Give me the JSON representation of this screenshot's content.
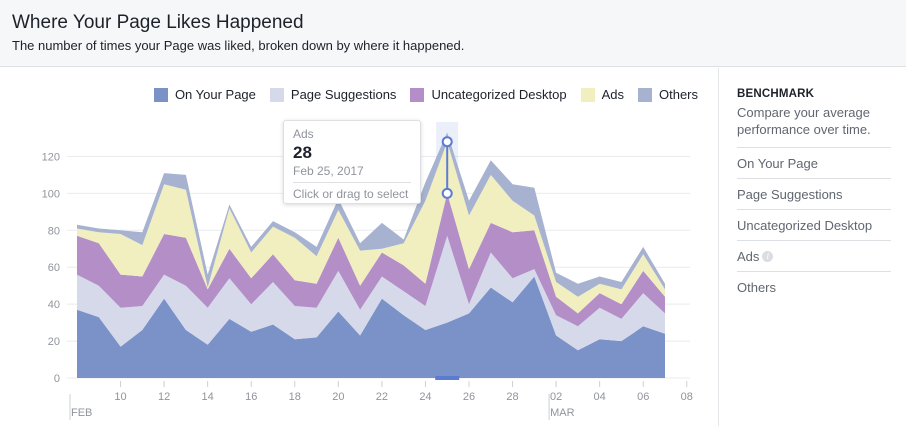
{
  "header": {
    "title": "Where Your Page Likes Happened",
    "subtitle": "The number of times your Page was liked, broken down by where it happened."
  },
  "sidebar": {
    "title": "BENCHMARK",
    "description": "Compare your average performance over time.",
    "items": [
      {
        "label": "On Your Page",
        "info": false
      },
      {
        "label": "Page Suggestions",
        "info": false
      },
      {
        "label": "Uncategorized Desktop",
        "info": false
      },
      {
        "label": "Ads",
        "info": true,
        "info_glyph": "i"
      },
      {
        "label": "Others",
        "info": false
      }
    ]
  },
  "tooltip": {
    "series": "Ads",
    "value": "28",
    "date": "Feb 25, 2017",
    "hint": "Click or drag to select"
  },
  "colors": {
    "on_your_page": "#7b92c8",
    "page_suggestions": "#d5d9ea",
    "uncategorized_desktop": "#b48fc7",
    "ads": "#f1efbf",
    "others": "#a6b2d0",
    "highlight": "#5b7bd5",
    "grid": "#e9ebee",
    "axis_text": "#90949c"
  },
  "chart_data": {
    "type": "area",
    "stacked": true,
    "x": [
      "Feb 08",
      "Feb 09",
      "Feb 10",
      "Feb 11",
      "Feb 12",
      "Feb 13",
      "Feb 14",
      "Feb 15",
      "Feb 16",
      "Feb 17",
      "Feb 18",
      "Feb 19",
      "Feb 20",
      "Feb 21",
      "Feb 22",
      "Feb 23",
      "Feb 24",
      "Feb 25",
      "Feb 26",
      "Feb 27",
      "Feb 28",
      "Mar 01",
      "Mar 02",
      "Mar 03",
      "Mar 04",
      "Mar 05",
      "Mar 06",
      "Mar 07"
    ],
    "series": [
      {
        "name": "On Your Page",
        "color": "#7b92c8",
        "values": [
          37,
          33,
          17,
          26,
          43,
          26,
          18,
          32,
          25,
          29,
          21,
          22,
          36,
          23,
          43,
          34,
          26,
          30,
          35,
          49,
          41,
          55,
          23,
          15,
          21,
          20,
          28,
          24
        ]
      },
      {
        "name": "Page Suggestions",
        "color": "#d5d9ea",
        "values": [
          19,
          17,
          21,
          13,
          13,
          24,
          20,
          22,
          15,
          23,
          18,
          16,
          22,
          14,
          12,
          13,
          13,
          47,
          5,
          19,
          13,
          4,
          11,
          13,
          17,
          12,
          18,
          11
        ]
      },
      {
        "name": "Uncategorized Desktop",
        "color": "#b48fc7",
        "values": [
          21,
          23,
          18,
          16,
          22,
          26,
          10,
          16,
          14,
          15,
          14,
          13,
          18,
          13,
          13,
          14,
          12,
          23,
          19,
          16,
          25,
          21,
          10,
          7,
          8,
          8,
          12,
          9
        ]
      },
      {
        "name": "Ads",
        "color": "#f1efbf",
        "values": [
          4,
          6,
          22,
          17,
          27,
          26,
          1,
          22,
          14,
          15,
          23,
          15,
          15,
          19,
          2,
          12,
          45,
          28,
          29,
          26,
          17,
          8,
          8,
          9,
          5,
          8,
          9,
          4
        ]
      },
      {
        "name": "Others",
        "color": "#a6b2d0",
        "values": [
          2,
          2,
          2,
          7,
          6,
          8,
          7,
          2,
          3,
          3,
          3,
          5,
          6,
          4,
          14,
          2,
          10,
          5,
          8,
          8,
          9,
          15,
          5,
          7,
          4,
          4,
          4,
          3
        ]
      }
    ],
    "legend_order": [
      "On Your Page",
      "Page Suggestions",
      "Uncategorized Desktop",
      "Ads",
      "Others"
    ],
    "legend_placement": "top-right",
    "ylim": [
      0,
      130
    ],
    "yticks": [
      0,
      20,
      40,
      60,
      80,
      100,
      120
    ],
    "xticks": [
      {
        "x": "Feb 10",
        "label": "10"
      },
      {
        "x": "Feb 12",
        "label": "12"
      },
      {
        "x": "Feb 14",
        "label": "14"
      },
      {
        "x": "Feb 16",
        "label": "16"
      },
      {
        "x": "Feb 18",
        "label": "18"
      },
      {
        "x": "Feb 20",
        "label": "20"
      },
      {
        "x": "Feb 22",
        "label": "22"
      },
      {
        "x": "Feb 24",
        "label": "24"
      },
      {
        "x": "Feb 26",
        "label": "26"
      },
      {
        "x": "Feb 28",
        "label": "28"
      },
      {
        "x": "Mar 02",
        "label": "02"
      },
      {
        "x": "Mar 04",
        "label": "04"
      },
      {
        "x": "Mar 06",
        "label": "06"
      },
      {
        "x": "Mar 08",
        "label": "08"
      }
    ],
    "month_labels": [
      {
        "x": "Feb 08",
        "label": "FEB"
      },
      {
        "x": "Mar 02",
        "label": "MAR"
      }
    ],
    "highlighted_x": "Feb 25",
    "grid": true
  }
}
